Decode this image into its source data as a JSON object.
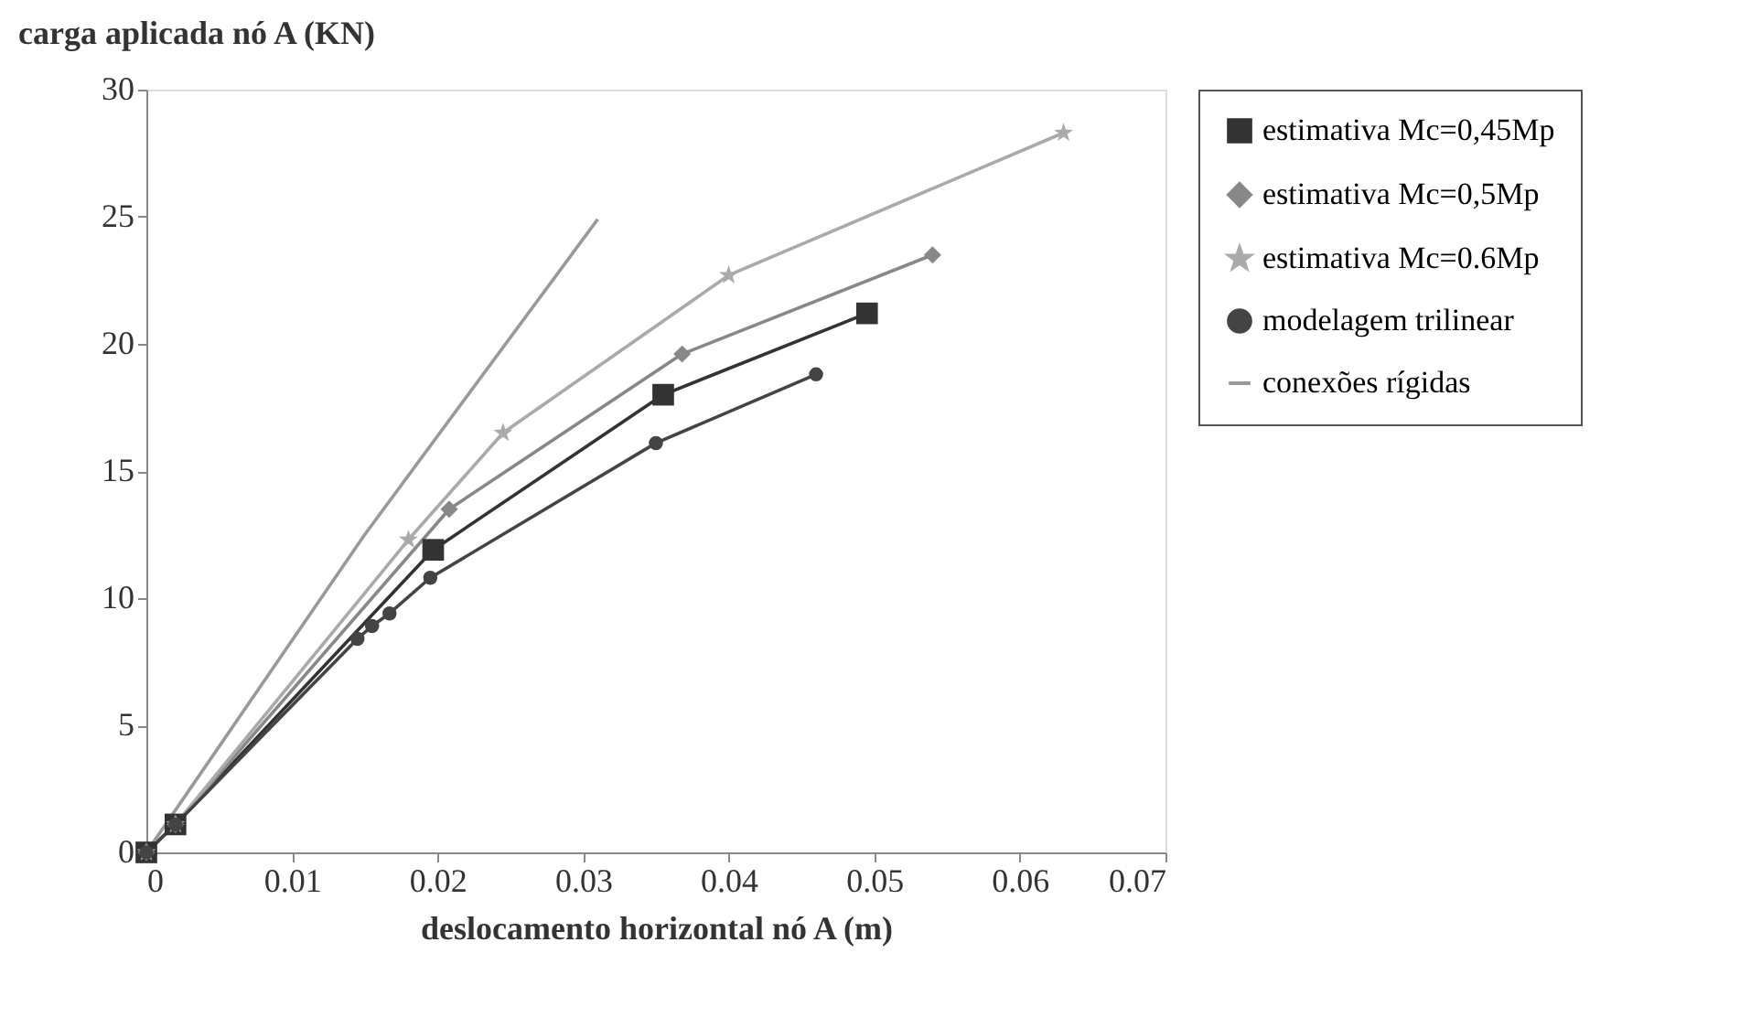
{
  "chart_data": {
    "type": "line",
    "xlabel": "deslocamento horizontal nó A (m)",
    "ylabel": "carga aplicada nó A (KN)",
    "xlim": [
      0,
      0.07
    ],
    "xticks": [
      0,
      0.01,
      0.02,
      0.03,
      0.04,
      0.05,
      0.06,
      0.07
    ],
    "ylim": [
      0,
      30
    ],
    "yticks": [
      0,
      5,
      10,
      15,
      20,
      25,
      30
    ],
    "grid": false,
    "legend": "right",
    "series": [
      {
        "name": "estimativa Mc=0,45Mp",
        "color": "#333333",
        "marker": "square",
        "x": [
          0,
          0.002,
          0.0197,
          0.0355,
          0.0495
        ],
        "values": [
          0,
          1.1,
          11.9,
          18.0,
          21.2
        ]
      },
      {
        "name": "estimativa Mc=0,5Mp",
        "color": "#888888",
        "marker": "diamond",
        "x": [
          0,
          0.002,
          0.0208,
          0.0368,
          0.054
        ],
        "values": [
          0,
          1.1,
          13.5,
          19.6,
          23.5
        ]
      },
      {
        "name": "estimativa Mc=0.6Mp",
        "color": "#aaaaaa",
        "marker": "star",
        "x": [
          0,
          0.002,
          0.018,
          0.0245,
          0.04,
          0.063
        ],
        "values": [
          0,
          1.1,
          12.3,
          16.5,
          22.7,
          28.3
        ]
      },
      {
        "name": "modelagem trilinear",
        "color": "#444444",
        "marker": "circle",
        "x": [
          0,
          0.002,
          0.0145,
          0.0155,
          0.0167,
          0.0195,
          0.035,
          0.046
        ],
        "values": [
          0,
          1.1,
          8.4,
          8.9,
          9.4,
          10.8,
          16.1,
          18.8
        ]
      },
      {
        "name": "conexões rígidas",
        "color": "#999999",
        "marker": "none",
        "x": [
          0,
          0.015,
          0.031
        ],
        "values": [
          0,
          12.5,
          24.9
        ]
      }
    ]
  }
}
